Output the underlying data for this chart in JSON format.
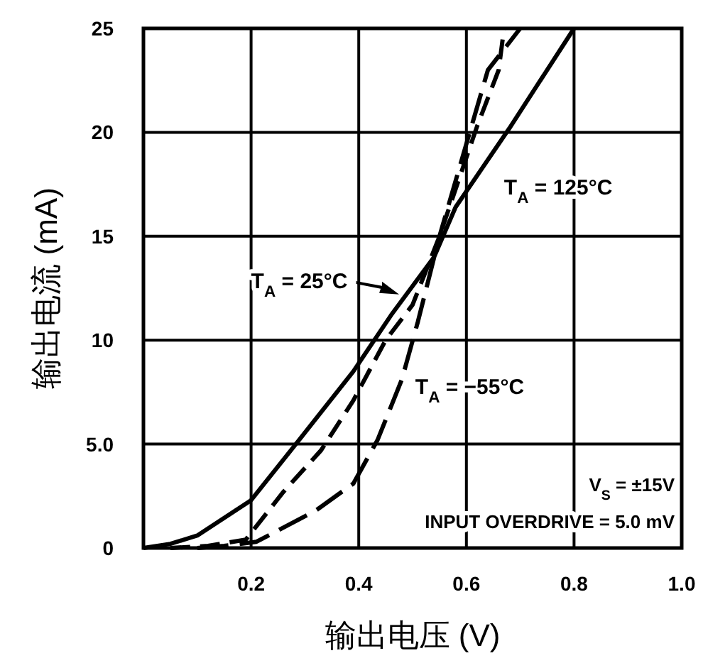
{
  "chart_data": {
    "type": "line",
    "xlabel": "输出电压 (V)",
    "ylabel": "输出电流 (mA)",
    "xlim": [
      0,
      1
    ],
    "xticks": [
      {
        "value": 0,
        "label": null
      },
      0.2,
      0.4,
      0.6,
      0.8,
      {
        "value": 1,
        "label": "1.0"
      }
    ],
    "ylim": [
      0,
      25
    ],
    "yticks": [
      0,
      {
        "value": 5,
        "label": "5.0"
      },
      10,
      15,
      20,
      25
    ],
    "grid": true,
    "marker": "none",
    "series": [
      {
        "name": "T$_{A}$ = 125°C",
        "color": "#000000",
        "line_style": "solid",
        "x": [
          0,
          0.05,
          0.1,
          0.2,
          0.28,
          0.39,
          0.46,
          0.54,
          0.58,
          0.68,
          0.8
        ],
        "values": [
          0,
          0.2,
          0.6,
          2.3,
          4.9,
          8.5,
          11.2,
          14.0,
          16.4,
          20.2,
          25
        ]
      },
      {
        "name": "T$_{A}$ = 25°C",
        "color": "#000000",
        "line_style": "dashed",
        "x": [
          0.05,
          0.12,
          0.19,
          0.26,
          0.33,
          0.39,
          0.45,
          0.5,
          0.55,
          0.62,
          0.66,
          0.67
        ],
        "values": [
          0,
          0.1,
          0.4,
          2.7,
          4.7,
          7.1,
          10,
          11.7,
          15,
          20.3,
          23,
          25
        ]
      },
      {
        "name": "T$_{A}$ = −55°C",
        "color": "#000000",
        "line_style": "dashed",
        "x": [
          0.1,
          0.15,
          0.21,
          0.32,
          0.39,
          0.435,
          0.48,
          0.51,
          0.55,
          0.64,
          0.7
        ],
        "values": [
          0,
          0.1,
          0.3,
          1.8,
          3.1,
          5.2,
          8.1,
          10.9,
          15,
          23,
          25
        ]
      }
    ],
    "annotations": [
      "V$_{S}$ = ±15V",
      "INPUT OVERDRIVE = 5.0 mV"
    ]
  }
}
